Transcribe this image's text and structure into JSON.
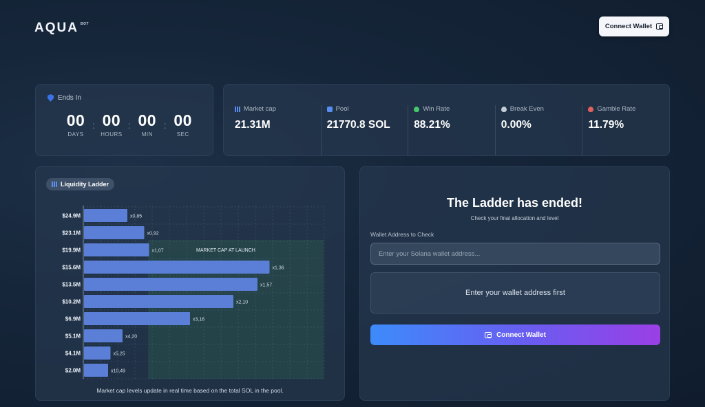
{
  "brand": {
    "name": "AQUA",
    "sup": "BOT"
  },
  "header": {
    "connect_label": "Connect Wallet"
  },
  "countdown": {
    "title": "Ends In",
    "units": [
      {
        "value": "00",
        "label": "DAYS"
      },
      {
        "value": "00",
        "label": "HOURS"
      },
      {
        "value": "00",
        "label": "MIN"
      },
      {
        "value": "00",
        "label": "SEC"
      }
    ]
  },
  "stats": [
    {
      "label": "Market cap",
      "value": "21.31M",
      "icon": "bar-chart-icon"
    },
    {
      "label": "Pool",
      "value": "21770.8 SOL",
      "icon": "pool-icon"
    },
    {
      "label": "Win Rate",
      "value": "88.21%",
      "icon": "win-flame-icon"
    },
    {
      "label": "Break Even",
      "value": "0.00%",
      "icon": "break-even-flame-icon"
    },
    {
      "label": "Gamble Rate",
      "value": "11.79%",
      "icon": "gamble-flame-icon"
    }
  ],
  "ladder": {
    "chip_label": "Liquidity Ladder",
    "launch_label": "MARKET CAP AT LAUNCH",
    "footer": "Market cap levels update in real time based on the total SOL in the pool."
  },
  "chart_data": {
    "type": "bar",
    "orientation": "horizontal",
    "categories": [
      "$24.9M",
      "$23.1M",
      "$19.9M",
      "$15.6M",
      "$13.5M",
      "$10.2M",
      "$6.9M",
      "$5.1M",
      "$4.1M",
      "$2.0M"
    ],
    "values": [
      0.85,
      0.92,
      1.07,
      1.36,
      1.57,
      2.1,
      3.16,
      4.2,
      5.25,
      10.49
    ],
    "value_labels": [
      "x0,85",
      "x0,92",
      "x1,07",
      "x1,36",
      "x1,57",
      "x2,10",
      "x3,16",
      "x4,20",
      "x5,25",
      "x10,49"
    ],
    "bar_fraction_of_plot": [
      0.18,
      0.25,
      0.27,
      0.77,
      0.72,
      0.62,
      0.44,
      0.16,
      0.11,
      0.1
    ],
    "bar_color": "#5b7fd6",
    "highlight_color": "#2f6b4e",
    "highlight_label": "MARKET CAP AT LAUNCH",
    "grid": true
  },
  "result": {
    "title": "The Ladder has ended!",
    "subtitle": "Check your final allocation and level",
    "field_label": "Wallet Address to Check",
    "placeholder": "Enter your Solana wallet address...",
    "notice": "Enter your wallet address first",
    "connect_label": "Connect Wallet"
  },
  "colors": {
    "accent_start": "#3d8bfb",
    "accent_end": "#9a3fe6",
    "bar": "#5b7fd6"
  }
}
